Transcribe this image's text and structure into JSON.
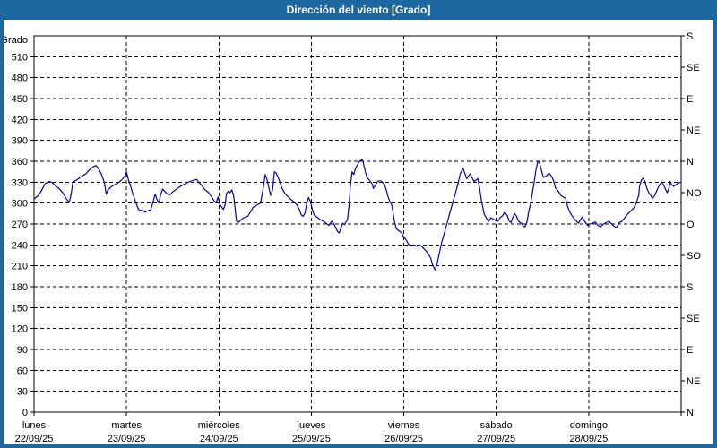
{
  "window": {
    "title": "Dirección del viento [Grado]"
  },
  "theme": {
    "titlebar_bg": "#1d67a0",
    "frame_border": "#1d67a0",
    "line_color": "#0202a8",
    "grid_color": "#000000",
    "background": "#ffffff"
  },
  "chart_data": {
    "type": "line",
    "title": "Dirección del viento [Grado]",
    "ylabel_left": "Grado",
    "y_axis": {
      "min": 0,
      "max": 540,
      "tick_step": 30,
      "ticks": [
        0,
        30,
        60,
        90,
        120,
        150,
        180,
        210,
        240,
        270,
        300,
        330,
        360,
        390,
        420,
        450,
        480,
        510
      ]
    },
    "right_axis": {
      "tick_step_deg": 45,
      "labels_bottom_to_top": [
        "N",
        "NE",
        "E",
        "SE",
        "S",
        "SO",
        "O",
        "NO",
        "N",
        "NE",
        "E",
        "SE",
        "S"
      ]
    },
    "x_axis": {
      "span_days": 7,
      "days": [
        {
          "name": "lunes",
          "date": "22/09/25"
        },
        {
          "name": "martes",
          "date": "23/09/25"
        },
        {
          "name": "miércoles",
          "date": "24/09/25"
        },
        {
          "name": "jueves",
          "date": "25/09/25"
        },
        {
          "name": "viernes",
          "date": "26/09/25"
        },
        {
          "name": "sábado",
          "date": "27/09/25"
        },
        {
          "name": "domingo",
          "date": "28/09/25"
        }
      ]
    },
    "grid": {
      "horizontal_every_deg": 30,
      "vertical_at": "day-boundaries",
      "style": "dashed"
    },
    "series": [
      {
        "name": "Dirección del viento",
        "units": "Grado",
        "color": "#0202a8",
        "points": [
          [
            0.0,
            306
          ],
          [
            0.04,
            310
          ],
          [
            0.08,
            318
          ],
          [
            0.12,
            328
          ],
          [
            0.16,
            331
          ],
          [
            0.19,
            330
          ],
          [
            0.23,
            325
          ],
          [
            0.27,
            321
          ],
          [
            0.31,
            315
          ],
          [
            0.35,
            306
          ],
          [
            0.38,
            301
          ],
          [
            0.4,
            312
          ],
          [
            0.42,
            330
          ],
          [
            0.47,
            334
          ],
          [
            0.51,
            338
          ],
          [
            0.56,
            342
          ],
          [
            0.6,
            348
          ],
          [
            0.64,
            352
          ],
          [
            0.67,
            354
          ],
          [
            0.7,
            349
          ],
          [
            0.73,
            341
          ],
          [
            0.76,
            330
          ],
          [
            0.78,
            313
          ],
          [
            0.8,
            319
          ],
          [
            0.84,
            324
          ],
          [
            0.88,
            327
          ],
          [
            0.92,
            330
          ],
          [
            0.96,
            335
          ],
          [
            0.99,
            341
          ],
          [
            1.0,
            345
          ],
          [
            1.02,
            334
          ],
          [
            1.04,
            326
          ],
          [
            1.06,
            317
          ],
          [
            1.09,
            305
          ],
          [
            1.12,
            294
          ],
          [
            1.14,
            289
          ],
          [
            1.17,
            290
          ],
          [
            1.2,
            287
          ],
          [
            1.23,
            289
          ],
          [
            1.26,
            290
          ],
          [
            1.28,
            298
          ],
          [
            1.31,
            313
          ],
          [
            1.33,
            305
          ],
          [
            1.35,
            300
          ],
          [
            1.37,
            312
          ],
          [
            1.39,
            320
          ],
          [
            1.42,
            316
          ],
          [
            1.44,
            313
          ],
          [
            1.47,
            312
          ],
          [
            1.5,
            316
          ],
          [
            1.53,
            319
          ],
          [
            1.57,
            323
          ],
          [
            1.61,
            326
          ],
          [
            1.65,
            329
          ],
          [
            1.69,
            331
          ],
          [
            1.73,
            333
          ],
          [
            1.76,
            334
          ],
          [
            1.78,
            330
          ],
          [
            1.81,
            326
          ],
          [
            1.85,
            319
          ],
          [
            1.89,
            315
          ],
          [
            1.92,
            309
          ],
          [
            1.95,
            303
          ],
          [
            1.97,
            300
          ],
          [
            1.99,
            309
          ],
          [
            2.01,
            298
          ],
          [
            2.03,
            294
          ],
          [
            2.05,
            291
          ],
          [
            2.07,
            299
          ],
          [
            2.08,
            313
          ],
          [
            2.1,
            317
          ],
          [
            2.12,
            315
          ],
          [
            2.14,
            319
          ],
          [
            2.16,
            310
          ],
          [
            2.17,
            298
          ],
          [
            2.19,
            274
          ],
          [
            2.21,
            272
          ],
          [
            2.24,
            276
          ],
          [
            2.27,
            279
          ],
          [
            2.31,
            281
          ],
          [
            2.34,
            287
          ],
          [
            2.37,
            294
          ],
          [
            2.4,
            296
          ],
          [
            2.42,
            298
          ],
          [
            2.45,
            300
          ],
          [
            2.48,
            322
          ],
          [
            2.5,
            341
          ],
          [
            2.52,
            334
          ],
          [
            2.54,
            322
          ],
          [
            2.56,
            311
          ],
          [
            2.58,
            319
          ],
          [
            2.6,
            345
          ],
          [
            2.62,
            343
          ],
          [
            2.64,
            337
          ],
          [
            2.66,
            330
          ],
          [
            2.68,
            322
          ],
          [
            2.7,
            317
          ],
          [
            2.72,
            313
          ],
          [
            2.75,
            309
          ],
          [
            2.78,
            305
          ],
          [
            2.81,
            302
          ],
          [
            2.84,
            298
          ],
          [
            2.87,
            291
          ],
          [
            2.89,
            283
          ],
          [
            2.91,
            281
          ],
          [
            2.93,
            285
          ],
          [
            2.95,
            300
          ],
          [
            2.97,
            308
          ],
          [
            2.99,
            302
          ],
          [
            3.01,
            291
          ],
          [
            3.03,
            283
          ],
          [
            3.05,
            281
          ],
          [
            3.07,
            279
          ],
          [
            3.1,
            276
          ],
          [
            3.13,
            274
          ],
          [
            3.16,
            271
          ],
          [
            3.19,
            268
          ],
          [
            3.22,
            274
          ],
          [
            3.24,
            271
          ],
          [
            3.26,
            266
          ],
          [
            3.28,
            260
          ],
          [
            3.3,
            257
          ],
          [
            3.32,
            264
          ],
          [
            3.34,
            271
          ],
          [
            3.36,
            269
          ],
          [
            3.37,
            272
          ],
          [
            3.39,
            276
          ],
          [
            3.41,
            300
          ],
          [
            3.42,
            321
          ],
          [
            3.43,
            334
          ],
          [
            3.44,
            345
          ],
          [
            3.46,
            341
          ],
          [
            3.47,
            347
          ],
          [
            3.49,
            353
          ],
          [
            3.51,
            358
          ],
          [
            3.53,
            361
          ],
          [
            3.55,
            362
          ],
          [
            3.56,
            359
          ],
          [
            3.58,
            347
          ],
          [
            3.6,
            337
          ],
          [
            3.62,
            334
          ],
          [
            3.64,
            331
          ],
          [
            3.66,
            327
          ],
          [
            3.67,
            321
          ],
          [
            3.69,
            325
          ],
          [
            3.71,
            330
          ],
          [
            3.73,
            332
          ],
          [
            3.75,
            332
          ],
          [
            3.77,
            330
          ],
          [
            3.79,
            327
          ],
          [
            3.81,
            319
          ],
          [
            3.83,
            309
          ],
          [
            3.85,
            302
          ],
          [
            3.87,
            297
          ],
          [
            3.88,
            289
          ],
          [
            3.9,
            272
          ],
          [
            3.92,
            263
          ],
          [
            3.94,
            261
          ],
          [
            3.96,
            259
          ],
          [
            3.98,
            257
          ],
          [
            3.99,
            253
          ],
          [
            4.01,
            250
          ],
          [
            4.03,
            246
          ],
          [
            4.05,
            241
          ],
          [
            4.08,
            239
          ],
          [
            4.11,
            240
          ],
          [
            4.14,
            238
          ],
          [
            4.17,
            240
          ],
          [
            4.2,
            237
          ],
          [
            4.23,
            233
          ],
          [
            4.26,
            228
          ],
          [
            4.29,
            221
          ],
          [
            4.31,
            212
          ],
          [
            4.34,
            204
          ],
          [
            4.36,
            213
          ],
          [
            4.38,
            226
          ],
          [
            4.41,
            244
          ],
          [
            4.44,
            258
          ],
          [
            4.47,
            272
          ],
          [
            4.5,
            287
          ],
          [
            4.53,
            301
          ],
          [
            4.56,
            315
          ],
          [
            4.59,
            330
          ],
          [
            4.61,
            342
          ],
          [
            4.64,
            350
          ],
          [
            4.66,
            343
          ],
          [
            4.68,
            335
          ],
          [
            4.7,
            339
          ],
          [
            4.72,
            342
          ],
          [
            4.74,
            336
          ],
          [
            4.76,
            331
          ],
          [
            4.78,
            333
          ],
          [
            4.8,
            335
          ],
          [
            4.82,
            322
          ],
          [
            4.84,
            303
          ],
          [
            4.87,
            284
          ],
          [
            4.9,
            277
          ],
          [
            4.92,
            274
          ],
          [
            4.94,
            279
          ],
          [
            4.97,
            277
          ],
          [
            4.99,
            275
          ],
          [
            5.02,
            274
          ],
          [
            5.04,
            279
          ],
          [
            5.07,
            282
          ],
          [
            5.09,
            287
          ],
          [
            5.12,
            282
          ],
          [
            5.14,
            274
          ],
          [
            5.16,
            272
          ],
          [
            5.18,
            280
          ],
          [
            5.2,
            285
          ],
          [
            5.22,
            281
          ],
          [
            5.24,
            274
          ],
          [
            5.26,
            272
          ],
          [
            5.28,
            270
          ],
          [
            5.29,
            267
          ],
          [
            5.31,
            266
          ],
          [
            5.33,
            272
          ],
          [
            5.35,
            287
          ],
          [
            5.37,
            298
          ],
          [
            5.39,
            314
          ],
          [
            5.41,
            330
          ],
          [
            5.43,
            348
          ],
          [
            5.45,
            360
          ],
          [
            5.47,
            357
          ],
          [
            5.49,
            346
          ],
          [
            5.51,
            337
          ],
          [
            5.53,
            338
          ],
          [
            5.55,
            340
          ],
          [
            5.57,
            343
          ],
          [
            5.59,
            340
          ],
          [
            5.6,
            338
          ],
          [
            5.62,
            332
          ],
          [
            5.64,
            322
          ],
          [
            5.66,
            319
          ],
          [
            5.68,
            315
          ],
          [
            5.7,
            311
          ],
          [
            5.72,
            309
          ],
          [
            5.75,
            307
          ],
          [
            5.77,
            296
          ],
          [
            5.8,
            286
          ],
          [
            5.83,
            280
          ],
          [
            5.86,
            275
          ],
          [
            5.89,
            271
          ],
          [
            5.91,
            276
          ],
          [
            5.93,
            280
          ],
          [
            5.96,
            273
          ],
          [
            5.99,
            268
          ],
          [
            6.01,
            270
          ],
          [
            6.04,
            271
          ],
          [
            6.07,
            273
          ],
          [
            6.1,
            268
          ],
          [
            6.13,
            266
          ],
          [
            6.16,
            270
          ],
          [
            6.19,
            272
          ],
          [
            6.22,
            274
          ],
          [
            6.24,
            271
          ],
          [
            6.27,
            267
          ],
          [
            6.3,
            265
          ],
          [
            6.33,
            272
          ],
          [
            6.36,
            274
          ],
          [
            6.39,
            279
          ],
          [
            6.42,
            284
          ],
          [
            6.45,
            288
          ],
          [
            6.48,
            292
          ],
          [
            6.51,
            298
          ],
          [
            6.54,
            311
          ],
          [
            6.55,
            324
          ],
          [
            6.57,
            333
          ],
          [
            6.59,
            336
          ],
          [
            6.61,
            330
          ],
          [
            6.63,
            321
          ],
          [
            6.65,
            315
          ],
          [
            6.67,
            311
          ],
          [
            6.69,
            307
          ],
          [
            6.71,
            310
          ],
          [
            6.73,
            316
          ],
          [
            6.75,
            322
          ],
          [
            6.77,
            327
          ],
          [
            6.79,
            330
          ],
          [
            6.81,
            326
          ],
          [
            6.83,
            320
          ],
          [
            6.85,
            315
          ],
          [
            6.87,
            322
          ],
          [
            6.88,
            331
          ],
          [
            6.9,
            326
          ],
          [
            6.92,
            324
          ],
          [
            6.94,
            326
          ],
          [
            6.96,
            328
          ],
          [
            6.99,
            330
          ]
        ]
      }
    ]
  }
}
